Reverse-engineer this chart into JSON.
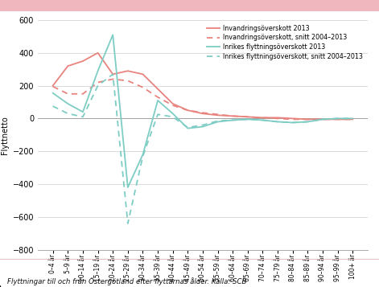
{
  "categories": [
    "0–4 år",
    "5–9 år",
    "10–14 år",
    "15–19 år",
    "20–24 år",
    "25–29 år",
    "30–34 år",
    "35–39 år",
    "40–44 år",
    "45–49 år",
    "50–54 år",
    "55–59 år",
    "60–64 år",
    "65–69 år",
    "70–74 år",
    "75–79 år",
    "80–84 år",
    "85–89 år",
    "90–94 år",
    "95–99 år",
    "100+ år"
  ],
  "invandring_2013": [
    200,
    320,
    350,
    400,
    270,
    290,
    270,
    180,
    90,
    50,
    30,
    20,
    15,
    10,
    5,
    5,
    0,
    -5,
    -5,
    -5,
    -5
  ],
  "invandring_snitt": [
    195,
    150,
    150,
    220,
    240,
    230,
    190,
    130,
    80,
    50,
    35,
    25,
    15,
    10,
    5,
    0,
    -5,
    -5,
    -5,
    -5,
    -5
  ],
  "inrikes_2013": [
    155,
    90,
    40,
    290,
    510,
    -420,
    -220,
    110,
    30,
    -60,
    -50,
    -20,
    -10,
    -5,
    -10,
    -20,
    -25,
    -20,
    -5,
    0,
    0
  ],
  "inrikes_snitt": [
    75,
    30,
    10,
    200,
    270,
    -640,
    -230,
    25,
    10,
    -55,
    -40,
    -15,
    -10,
    -5,
    -10,
    -20,
    -25,
    -20,
    -5,
    0,
    0
  ],
  "color_invandring": "#e8837e",
  "color_inrikes": "#7dcdc4",
  "ylim": [
    -800,
    600
  ],
  "yticks": [
    -800,
    -600,
    -400,
    -200,
    0,
    200,
    400,
    600
  ],
  "ylabel": "Flyttnetto",
  "legend_labels": [
    "Invandringsöverskott 2013",
    "Invandringsöverskott, snitt 2004–2013",
    "Inrikes flyttningsöverskott 2013",
    "Inrikes flyttningsöverskott, snitt 2004–2013"
  ],
  "caption": "Flyttningar till och från Östergötland efter flyttarnas ålder. Källa: SCB",
  "top_bar_color": "#f0b8be",
  "background_color": "#ffffff",
  "grid_color": "#cccccc",
  "spine_color": "#aaaaaa"
}
